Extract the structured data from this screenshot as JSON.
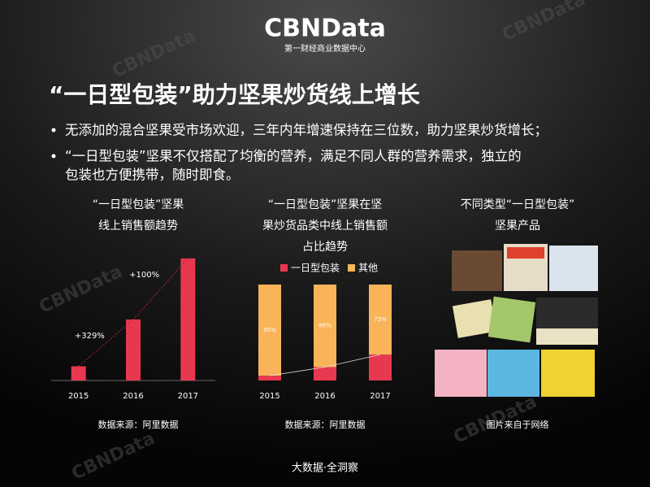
{
  "header": {
    "logo": "CBNData",
    "logo_subtitle": "第一财经商业数据中心"
  },
  "watermark": "CBNData",
  "title": "“一日型包装”助力坚果炒货线上增长",
  "bullets": [
    "无添加的混合坚果受市场欢迎，三年内年增速保持在三位数，助力坚果炒货增长；",
    [
      "“一日型包装”坚果不仅搭配了均衡的营养，满足不同人群的营养需求，独立的",
      "包装也方便携带，随时即食。"
    ]
  ],
  "chart_data": [
    {
      "type": "bar",
      "title": [
        "“一日型包装”坚果",
        "线上销售额趋势"
      ],
      "categories": [
        "2015",
        "2016",
        "2017"
      ],
      "values": [
        10,
        42.9,
        85.8
      ],
      "color": "#e8384f",
      "ylim": [
        0,
        100
      ],
      "annotations": [
        "+329%",
        "+100%"
      ],
      "source": "数据来源：阿里数据"
    },
    {
      "type": "stacked_bar",
      "title": [
        "“一日型包装”坚果在坚",
        "果炒货品类中线上销售额",
        "占比趋势"
      ],
      "categories": [
        "2015",
        "2016",
        "2017"
      ],
      "series": [
        {
          "name": "一日型包装",
          "color": "#e8384f",
          "values": [
            5,
            14,
            27
          ]
        },
        {
          "name": "其他",
          "color": "#f9b45a",
          "values": [
            95,
            86,
            73
          ],
          "value_labels": [
            "95%",
            "86%",
            "73%"
          ]
        }
      ],
      "ylim": [
        0,
        100
      ],
      "source": "数据来源：阿里数据"
    }
  ],
  "products": {
    "title": [
      "不同类型“一日型包装”",
      "坚果产品"
    ],
    "caption": "图片来自于网络"
  },
  "footer": "大数据·全洞察"
}
